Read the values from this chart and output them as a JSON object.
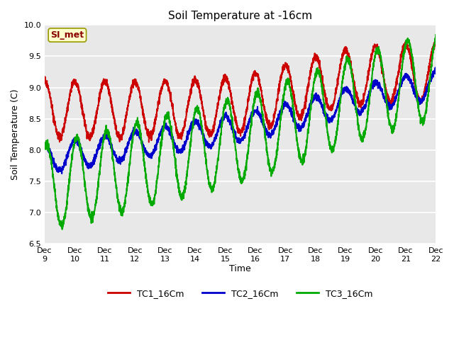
{
  "title": "Soil Temperature at -16cm",
  "xlabel": "Time",
  "ylabel": "Soil Temperature (C)",
  "ylim": [
    6.5,
    10.0
  ],
  "xlim": [
    0,
    312
  ],
  "annotation_label": "SI_met",
  "bg_color": "#ffffff",
  "plot_bg_color": "#e8e8e8",
  "grid_color": "#ffffff",
  "series": {
    "TC1_16Cm": {
      "color": "#cc0000",
      "linewidth": 1.5
    },
    "TC2_16Cm": {
      "color": "#0000cc",
      "linewidth": 1.5
    },
    "TC3_16Cm": {
      "color": "#00aa00",
      "linewidth": 1.5
    }
  },
  "x_tick_labels": [
    "Dec 9",
    "Dec 10",
    "Dec 11",
    "Dec 12",
    "Dec 13",
    "Dec 14",
    "Dec 15",
    "Dec 16",
    "Dec 17",
    "Dec 18",
    "Dec 19",
    "Dec 20",
    "Dec 21",
    "Dec 22"
  ],
  "x_tick_positions": [
    0,
    24,
    48,
    72,
    96,
    120,
    144,
    168,
    192,
    216,
    240,
    264,
    288,
    312
  ],
  "yticks": [
    6.5,
    7.0,
    7.5,
    8.0,
    8.5,
    9.0,
    9.5,
    10.0
  ],
  "legend_labels": [
    "TC1_16Cm",
    "TC2_16Cm",
    "TC3_16Cm"
  ]
}
